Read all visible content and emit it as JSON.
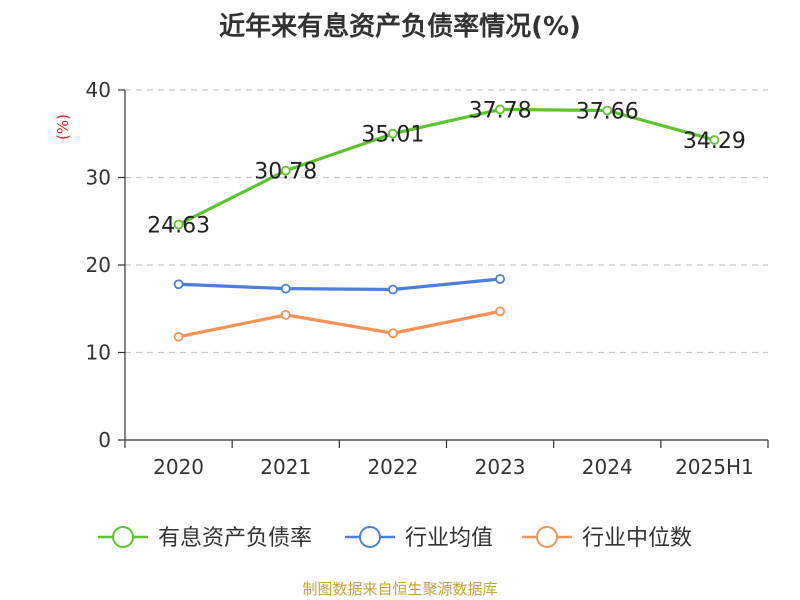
{
  "chart_data": {
    "type": "line",
    "title": "近年来有息资产负债率情况(%)",
    "ylabel": "(%)",
    "xlabel": "",
    "categories": [
      "2020",
      "2021",
      "2022",
      "2023",
      "2024",
      "2025H1"
    ],
    "ylim": [
      0,
      40
    ],
    "yticks": [
      0,
      10,
      20,
      30,
      40
    ],
    "grid": true,
    "legend_position": "bottom",
    "series": [
      {
        "name": "有息资产负债率",
        "color": "#5cc42c",
        "values": [
          24.63,
          30.78,
          35.01,
          37.78,
          37.66,
          34.29
        ],
        "data_labels": [
          "24.63",
          "30.78",
          "35.01",
          "37.78",
          "37.66",
          "34.29"
        ]
      },
      {
        "name": "行业均值",
        "color": "#4c7fdc",
        "values": [
          17.8,
          17.3,
          17.2,
          18.4,
          null,
          null
        ]
      },
      {
        "name": "行业中位数",
        "color": "#f79256",
        "values": [
          11.8,
          14.3,
          12.2,
          14.7,
          null,
          null
        ]
      }
    ]
  },
  "source": "制图数据来自恒生聚源数据库",
  "ylabel_color": "#e02020"
}
